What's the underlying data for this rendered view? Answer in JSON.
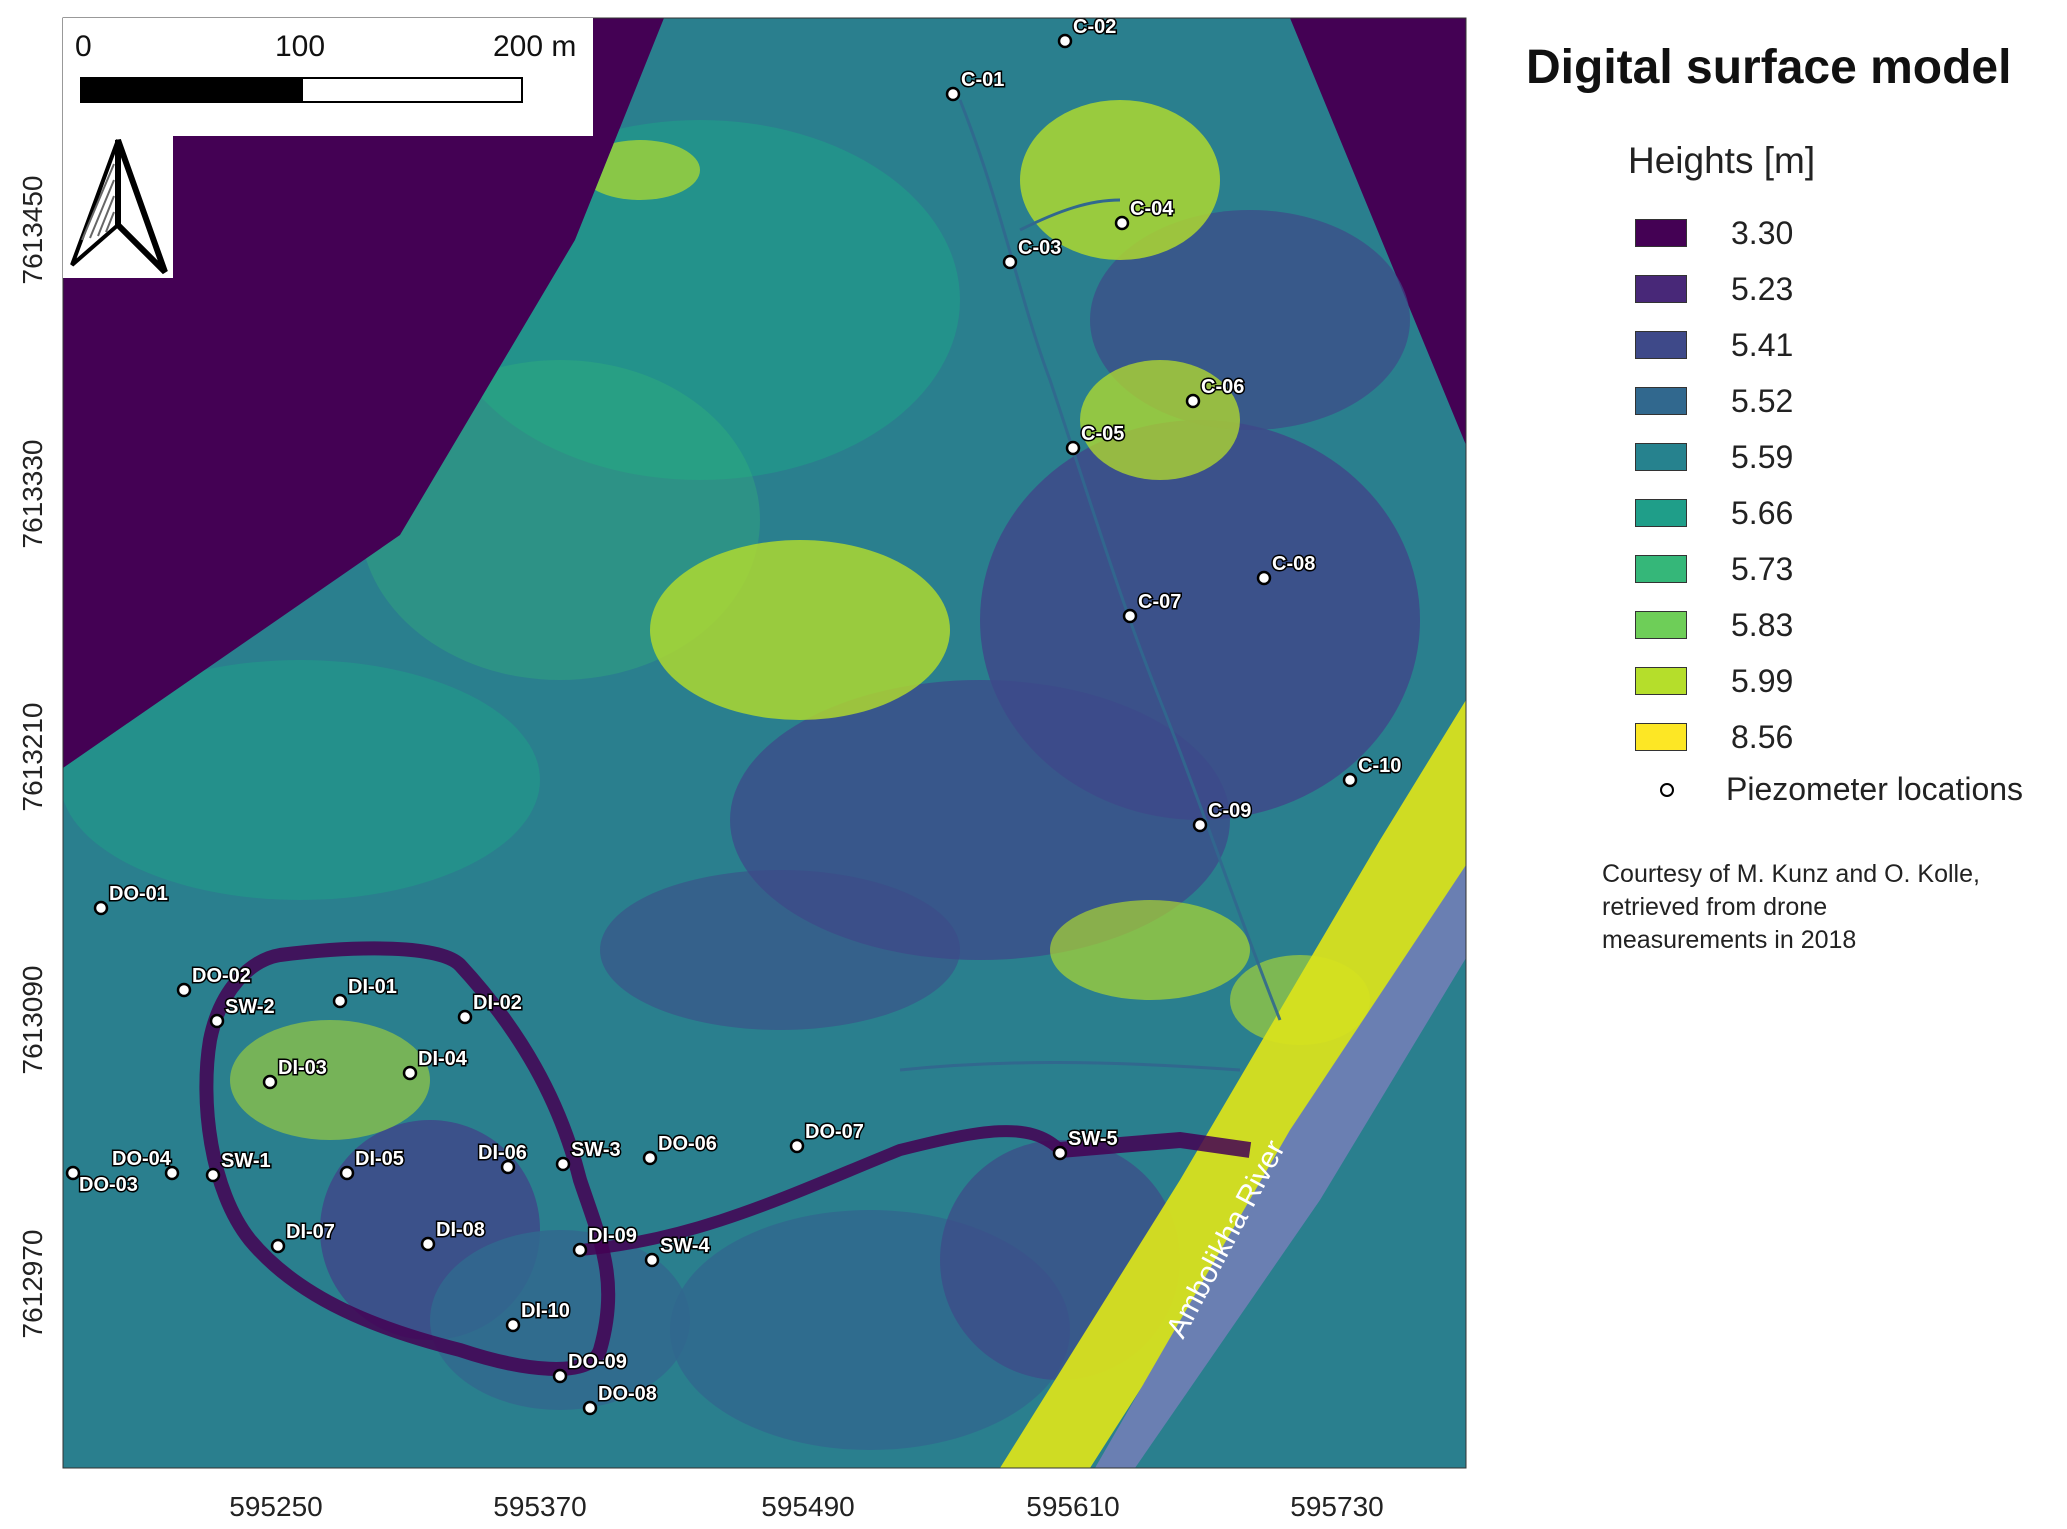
{
  "legend": {
    "title": "Digital surface model",
    "subtitle": "Heights [m]",
    "classes": [
      {
        "value": "3.30",
        "color": "#440154"
      },
      {
        "value": "5.23",
        "color": "#482878"
      },
      {
        "value": "5.41",
        "color": "#3e4989"
      },
      {
        "value": "5.52",
        "color": "#31688e"
      },
      {
        "value": "5.59",
        "color": "#26828e"
      },
      {
        "value": "5.66",
        "color": "#1f9e89"
      },
      {
        "value": "5.73",
        "color": "#35b779"
      },
      {
        "value": "5.83",
        "color": "#6ece58"
      },
      {
        "value": "5.99",
        "color": "#b5de2b"
      },
      {
        "value": "8.56",
        "color": "#fde725"
      }
    ],
    "piezometer_label": "Piezometer locations",
    "credit": [
      "Courtesy of M. Kunz and O. Kolle,",
      "retrieved from drone",
      "measurements in 2018"
    ]
  },
  "scalebar": {
    "labels": [
      "0",
      "100",
      "200 m"
    ]
  },
  "axes": {
    "x_ticks": [
      "595250",
      "595370",
      "595490",
      "595610",
      "595730"
    ],
    "y_ticks": [
      "7613450",
      "7613330",
      "7613210",
      "7613090",
      "7612970"
    ]
  },
  "river_label": "Ambolikha River",
  "colors": {
    "background": "#440154",
    "river": "#6a7fb2",
    "outside": "#440154"
  },
  "icons": [
    "north-arrow-icon",
    "piezometer-marker-icon"
  ],
  "piezometers": [
    {
      "id": "C-02"
    },
    {
      "id": "C-01"
    },
    {
      "id": "C-04"
    },
    {
      "id": "C-03"
    },
    {
      "id": "C-06"
    },
    {
      "id": "C-05"
    },
    {
      "id": "C-08"
    },
    {
      "id": "C-07"
    },
    {
      "id": "C-10"
    },
    {
      "id": "C-09"
    },
    {
      "id": "DO-01"
    },
    {
      "id": "DO-02"
    },
    {
      "id": "SW-2"
    },
    {
      "id": "DI-01"
    },
    {
      "id": "DI-02"
    },
    {
      "id": "DI-03"
    },
    {
      "id": "DI-04"
    },
    {
      "id": "DO-04"
    },
    {
      "id": "DO-03"
    },
    {
      "id": "SW-1"
    },
    {
      "id": "DI-05"
    },
    {
      "id": "DI-06"
    },
    {
      "id": "SW-3"
    },
    {
      "id": "DO-06"
    },
    {
      "id": "DO-07"
    },
    {
      "id": "SW-5"
    },
    {
      "id": "DI-07"
    },
    {
      "id": "DI-08"
    },
    {
      "id": "DI-09"
    },
    {
      "id": "SW-4"
    },
    {
      "id": "DI-10"
    },
    {
      "id": "DO-09"
    },
    {
      "id": "DO-08"
    }
  ]
}
